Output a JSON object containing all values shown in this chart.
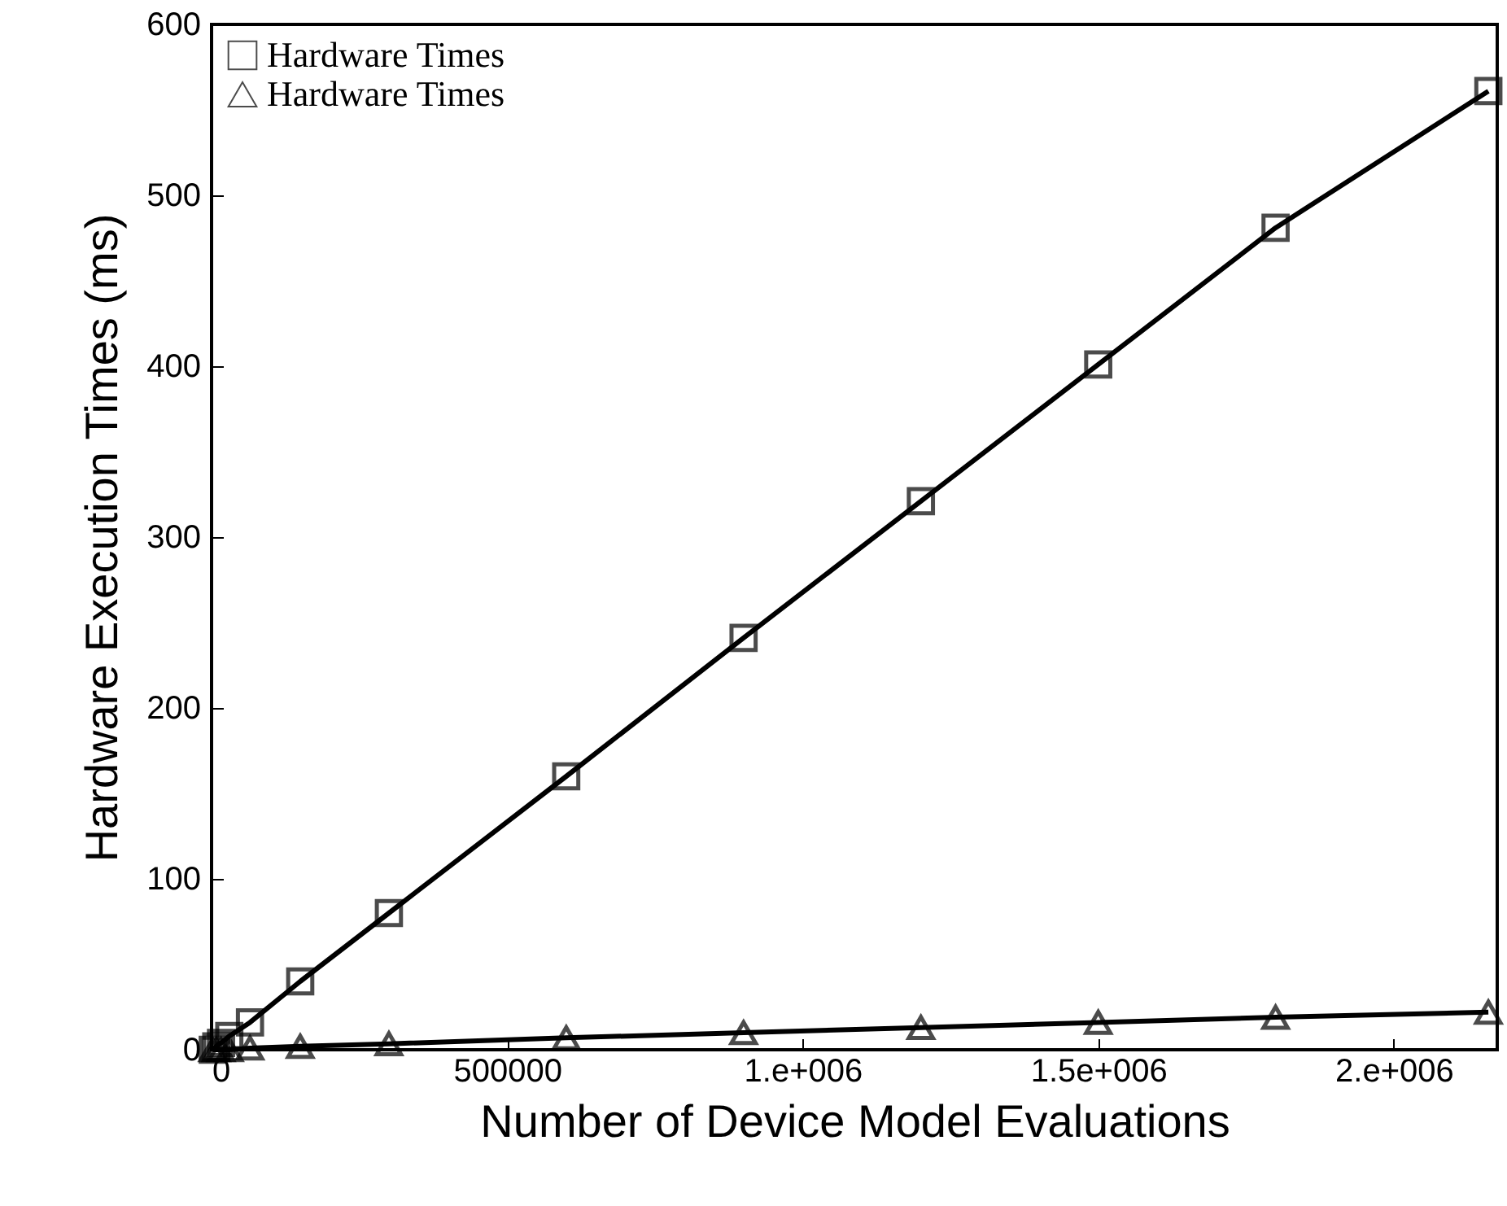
{
  "chart_data": {
    "type": "line",
    "xlabel": "Number of Device Model Evaluations",
    "ylabel": "Hardware Execution Times (ms)",
    "xlim": [
      0,
      2175000
    ],
    "ylim": [
      0,
      600
    ],
    "xticks": [
      0,
      {
        "value": 500000,
        "label": "500000"
      },
      {
        "value": 1000000,
        "label": "1.e+006"
      },
      {
        "value": 1500000,
        "label": "1.5e+006"
      },
      {
        "value": 2000000,
        "label": "2.e+006"
      }
    ],
    "yticks": [
      0,
      100,
      200,
      300,
      400,
      500,
      600
    ],
    "legend": "top left",
    "grid": false,
    "line_style": "solid",
    "series": [
      {
        "name": "Hardware Times",
        "color": "#000000",
        "marker": "square",
        "x": [
          2000,
          8000,
          16000,
          30000,
          65000,
          150000,
          300000,
          600000,
          900000,
          1200000,
          1500000,
          1800000,
          2160000
        ],
        "values": [
          0,
          2,
          4,
          8,
          16,
          40,
          80,
          160,
          241,
          321,
          401,
          481,
          561
        ]
      },
      {
        "name": "Hardware Times",
        "color": "#000000",
        "marker": "triangle",
        "x": [
          2000,
          8000,
          16000,
          30000,
          65000,
          150000,
          300000,
          600000,
          900000,
          1200000,
          1500000,
          1800000,
          2160000
        ],
        "values": [
          0,
          0,
          0,
          0,
          1,
          2,
          3.5,
          7,
          10,
          13,
          16,
          19,
          22
        ]
      }
    ]
  }
}
